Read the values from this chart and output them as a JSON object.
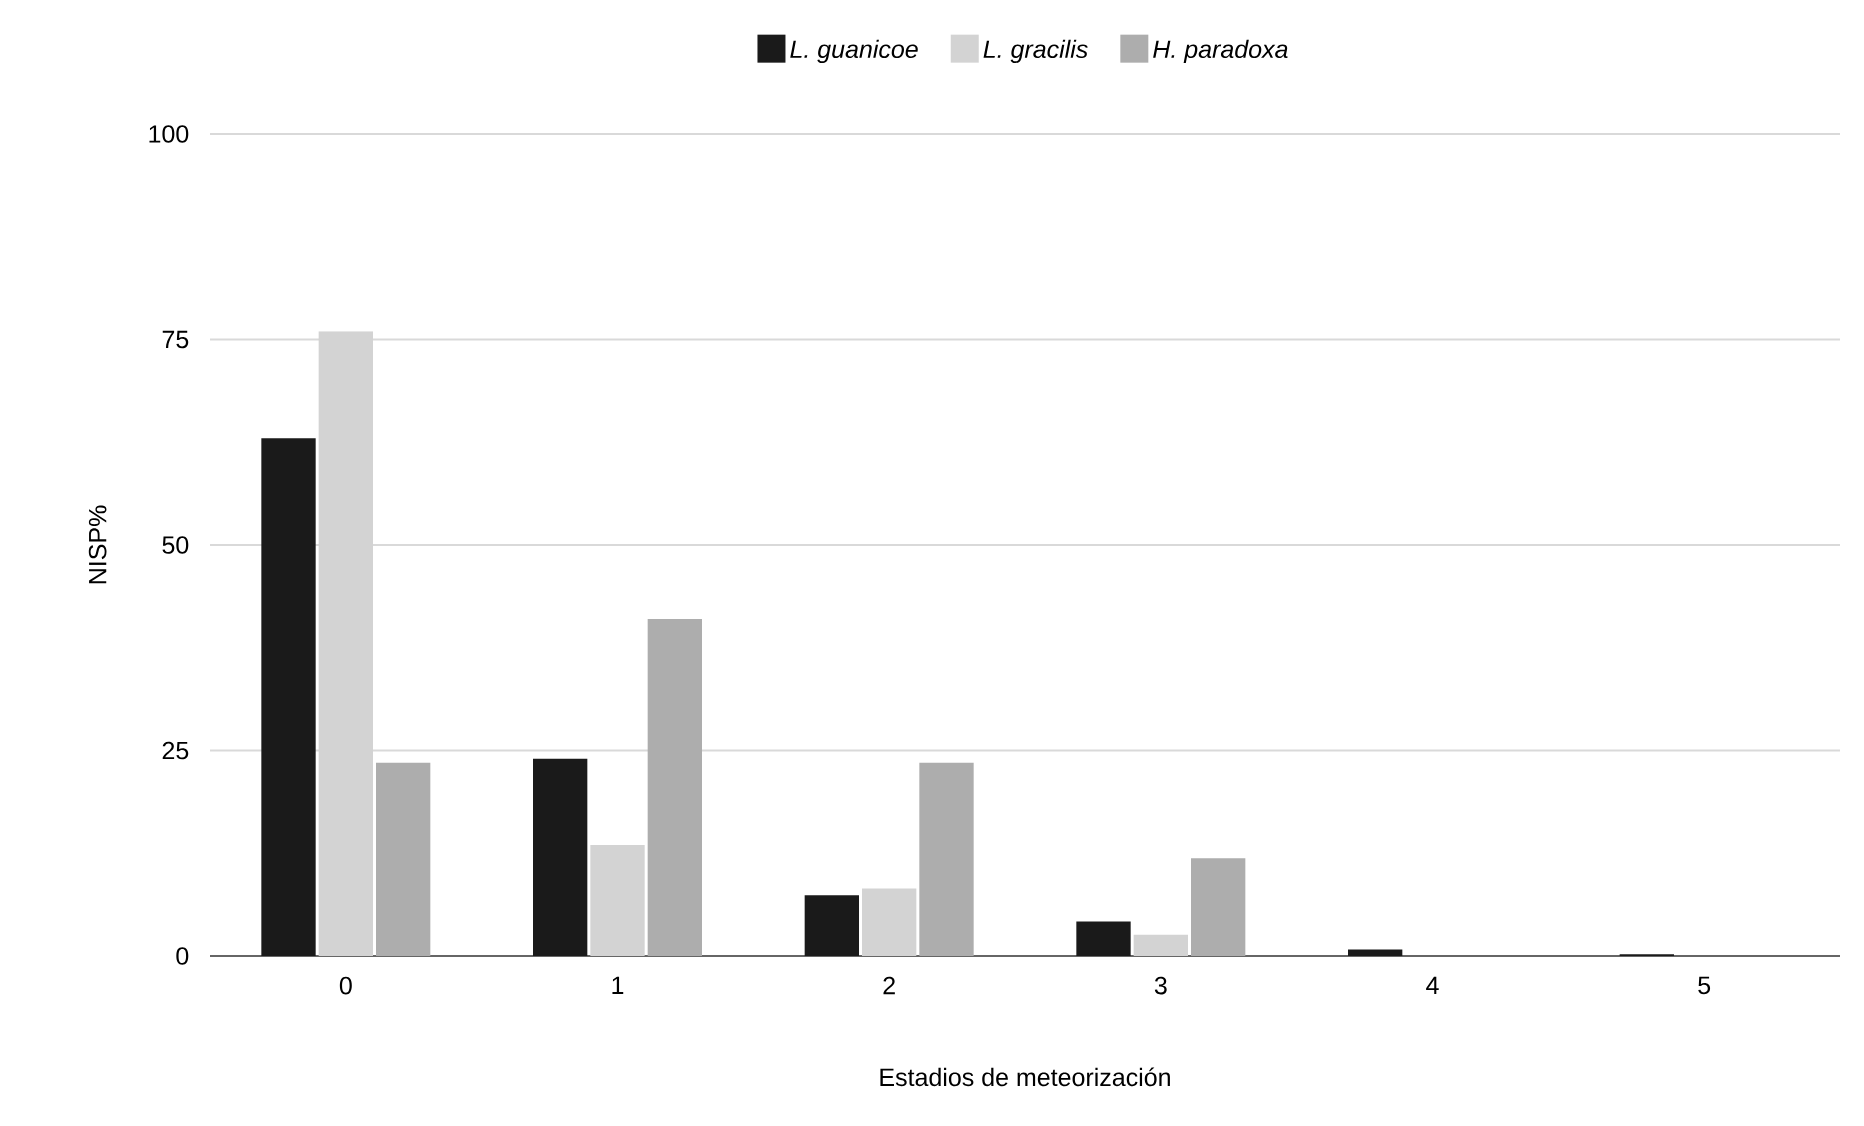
{
  "chart_data": {
    "type": "bar",
    "xlabel": "Estadios de meteorización",
    "ylabel": "NISP%",
    "categories": [
      "0",
      "1",
      "2",
      "3",
      "4",
      "5"
    ],
    "series": [
      {
        "name": "L. guanicoe",
        "color": "#1a1a1a",
        "values": [
          63,
          24,
          7.4,
          4.2,
          0.8,
          0.2
        ]
      },
      {
        "name": "L. gracilis",
        "color": "#d3d3d3",
        "values": [
          76,
          13.5,
          8.2,
          2.6,
          null,
          null
        ]
      },
      {
        "name": "H. paradoxa",
        "color": "#adadad",
        "values": [
          23.5,
          41,
          23.5,
          11.9,
          null,
          null
        ]
      }
    ],
    "ylim": [
      0,
      100
    ],
    "yticks": [
      0,
      25,
      50,
      75,
      100
    ],
    "grid": "y",
    "legend": "top"
  }
}
